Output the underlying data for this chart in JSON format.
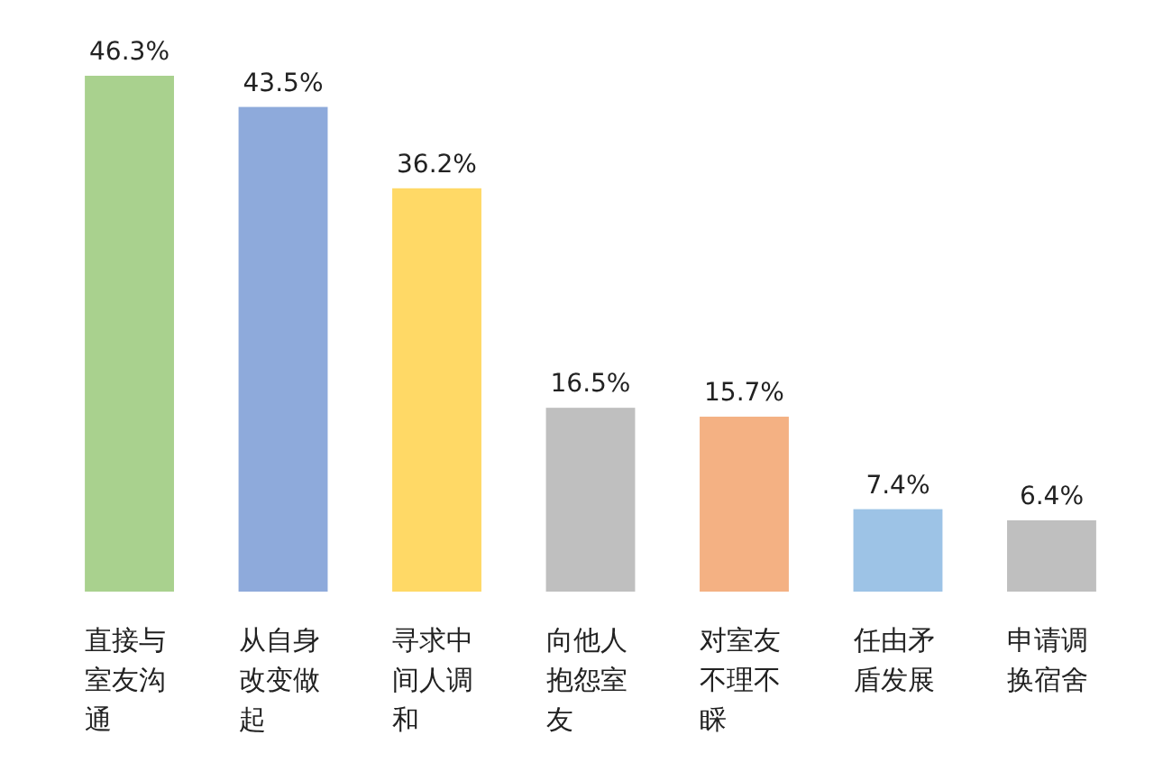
{
  "chart_data": {
    "type": "bar",
    "categories": [
      "直接与室友沟通",
      "从自身改变做起",
      "寻求中间人调和",
      "向他人抱怨室友",
      "对室友不理不睬",
      "任由矛盾发展",
      "申请调换宿舍"
    ],
    "values": [
      46.3,
      43.5,
      36.2,
      16.5,
      15.7,
      7.4,
      6.4
    ],
    "value_labels": [
      "46.3%",
      "43.5%",
      "36.2%",
      "16.5%",
      "15.7%",
      "7.4%",
      "6.4%"
    ],
    "colors": [
      "#a9d18e",
      "#8eaadb",
      "#ffd966",
      "#bfbfbf",
      "#f4b183",
      "#9dc3e6",
      "#bfbfbf"
    ]
  }
}
